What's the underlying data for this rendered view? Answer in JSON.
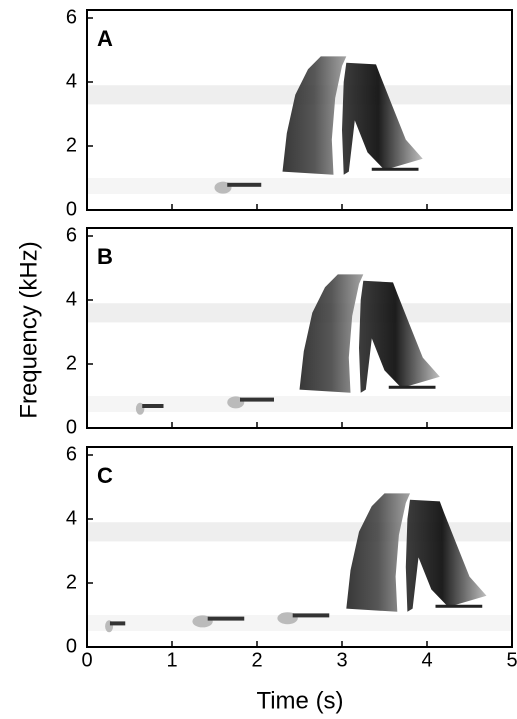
{
  "figure": {
    "xlabel": "Time (s)",
    "ylabel": "Frequency (kHz)"
  },
  "chart_data": [
    {
      "type": "spectrogram",
      "label": "A",
      "xlim": [
        0,
        5
      ],
      "ylim": [
        0,
        6.25
      ],
      "xticks": [
        0,
        1,
        2,
        3,
        4,
        5
      ],
      "yticks": [
        0,
        2,
        4,
        6
      ],
      "xtick_labels": false
    },
    {
      "type": "spectrogram",
      "label": "B",
      "xlim": [
        0,
        5
      ],
      "ylim": [
        0,
        6.25
      ],
      "xticks": [
        0,
        1,
        2,
        3,
        4,
        5
      ],
      "yticks": [
        0,
        2,
        4,
        6
      ],
      "xtick_labels": false
    },
    {
      "type": "spectrogram",
      "label": "C",
      "xlim": [
        0,
        5
      ],
      "ylim": [
        0,
        6.25
      ],
      "xticks": [
        0,
        1,
        2,
        3,
        4,
        5
      ],
      "yticks": [
        0,
        2,
        4,
        6
      ],
      "xtick_labels": true
    }
  ]
}
